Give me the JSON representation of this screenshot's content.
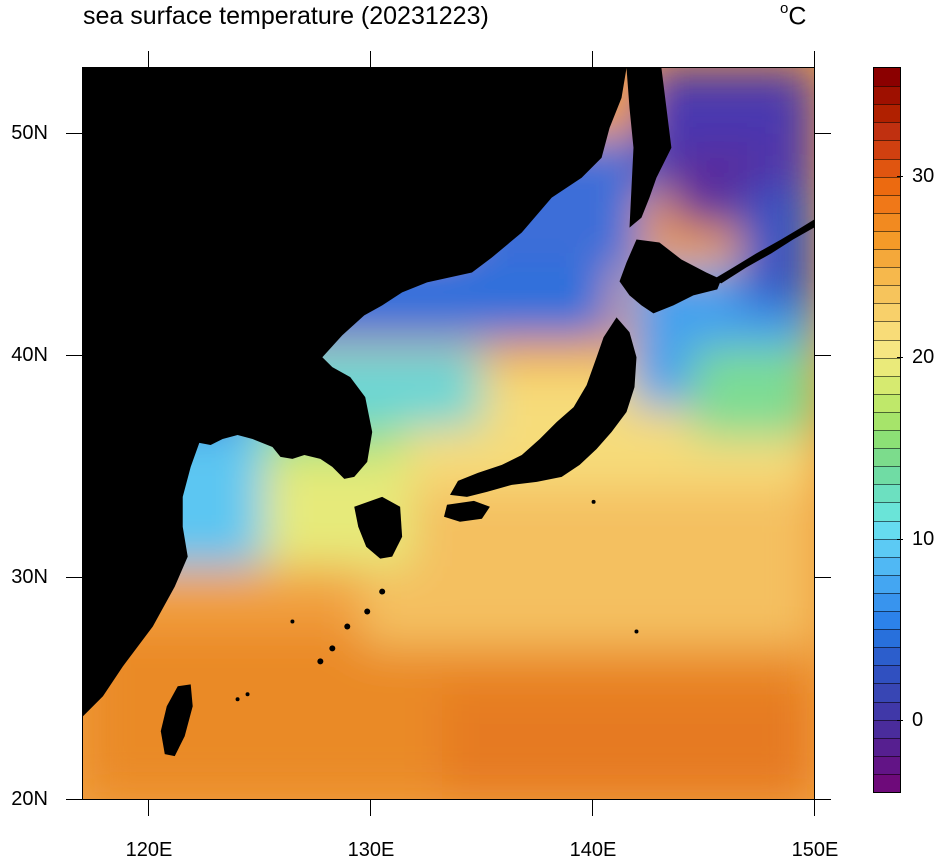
{
  "map": {
    "title": "sea surface temperature (20231223)",
    "units": {
      "prefix": "o",
      "main": "C"
    },
    "lat_labels": [
      "50N",
      "40N",
      "30N",
      "20N"
    ],
    "lon_labels": [
      "120E",
      "130E",
      "140E",
      "150E"
    ],
    "extent": {
      "lon": [
        117,
        150
      ],
      "lat": [
        20,
        53
      ]
    },
    "land_color": "#000000"
  },
  "colorbar": {
    "labels": [
      "30",
      "20",
      "10",
      "0"
    ],
    "range": [
      -4,
      36
    ],
    "step": 1,
    "colors": [
      "#8b0000",
      "#9e1000",
      "#b02000",
      "#c03010",
      "#d04010",
      "#e05510",
      "#ec6a10",
      "#f07818",
      "#f28a20",
      "#f49a28",
      "#f4a83a",
      "#f6b84c",
      "#f6c45c",
      "#f8d06a",
      "#f8dc78",
      "#f6e682",
      "#eaea7a",
      "#d6ea70",
      "#bfe86a",
      "#a6e46a",
      "#8ce076",
      "#7cdc8c",
      "#70dca4",
      "#6ce0c0",
      "#6ae4d8",
      "#66dcf0",
      "#5ccaf4",
      "#50b8f4",
      "#44a6f2",
      "#3894ee",
      "#2c82ea",
      "#2870dc",
      "#2c5ecc",
      "#3050c0",
      "#3846b4",
      "#4038a8",
      "#4a2c9c",
      "#561f90",
      "#621486",
      "#6e0a7a"
    ]
  }
}
